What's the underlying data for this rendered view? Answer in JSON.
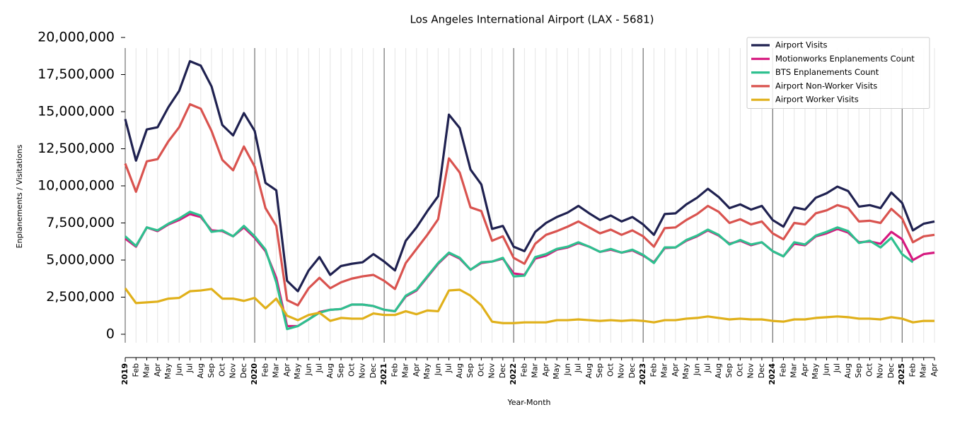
{
  "chart_data": {
    "type": "line",
    "title": "Los Angeles International Airport (LAX - 5681)",
    "x_label": "Year-Month",
    "y_label": "Enplanements / Visitations",
    "categories": [
      "2019",
      "Feb",
      "Mar",
      "Apr",
      "May",
      "Jun",
      "Jul",
      "Aug",
      "Sep",
      "Oct",
      "Nov",
      "Dec",
      "2020",
      "Feb",
      "Mar",
      "Apr",
      "May",
      "Jun",
      "Jul",
      "Aug",
      "Sep",
      "Oct",
      "Nov",
      "Dec",
      "2021",
      "Feb",
      "Mar",
      "Apr",
      "May",
      "Jun",
      "Jul",
      "Aug",
      "Sep",
      "Oct",
      "Nov",
      "Dec",
      "2022",
      "Feb",
      "Mar",
      "Apr",
      "May",
      "Jun",
      "Jul",
      "Aug",
      "Sep",
      "Oct",
      "Nov",
      "Dec",
      "2023",
      "Feb",
      "Mar",
      "Apr",
      "May",
      "Jun",
      "Jul",
      "Aug",
      "Sep",
      "Oct",
      "Nov",
      "Dec",
      "2024",
      "Feb",
      "Mar",
      "Apr",
      "May",
      "Jun",
      "Jul",
      "Aug",
      "Sep",
      "Oct",
      "Nov",
      "Dec",
      "2025",
      "Feb",
      "Mar",
      "Apr"
    ],
    "series": [
      {
        "name": "Airport Visits",
        "color": "#1f2150",
        "values": [
          14500000,
          11700000,
          13800000,
          13950000,
          15300000,
          16400000,
          18400000,
          18100000,
          16700000,
          14100000,
          13400000,
          14900000,
          13700000,
          10200000,
          9700000,
          3600000,
          2900000,
          4300000,
          5200000,
          4000000,
          4600000,
          4750000,
          4850000,
          5400000,
          4900000,
          4300000,
          6300000,
          7200000,
          8300000,
          9300000,
          14800000,
          13900000,
          11100000,
          10100000,
          7100000,
          7300000,
          5900000,
          5600000,
          6900000,
          7500000,
          7900000,
          8200000,
          8650000,
          8150000,
          7700000,
          8000000,
          7600000,
          7900000,
          7400000,
          6700000,
          8100000,
          8150000,
          8750000,
          9200000,
          9800000,
          9250000,
          8500000,
          8750000,
          8400000,
          8650000,
          7700000,
          7250000,
          8550000,
          8400000,
          9200000,
          9500000,
          9950000,
          9650000,
          8600000,
          8700000,
          8500000,
          9550000,
          8850000,
          7000000,
          7450000,
          7600000
        ]
      },
      {
        "name": "Motionworks Enplanements Count",
        "color": "#d6197f",
        "values": [
          6450000,
          5900000,
          7200000,
          6950000,
          7400000,
          7700000,
          8100000,
          7900000,
          7000000,
          6950000,
          6600000,
          7200000,
          6500000,
          5600000,
          3800000,
          550000,
          550000,
          1000000,
          1500000,
          1650000,
          1700000,
          2000000,
          2000000,
          1900000,
          1650000,
          1550000,
          2550000,
          2950000,
          3850000,
          4750000,
          5450000,
          5100000,
          4350000,
          4800000,
          4900000,
          5100000,
          4100000,
          4000000,
          5100000,
          5300000,
          5700000,
          5850000,
          6150000,
          5900000,
          5550000,
          5700000,
          5500000,
          5650000,
          5300000,
          4850000,
          5800000,
          5850000,
          6300000,
          6600000,
          7000000,
          6650000,
          6100000,
          6300000,
          6000000,
          6200000,
          5600000,
          5250000,
          6100000,
          6000000,
          6600000,
          6800000,
          7100000,
          6850000,
          6200000,
          6250000,
          6100000,
          6900000,
          6400000,
          5000000,
          5400000,
          5500000
        ]
      },
      {
        "name": "BTS Enplanements Count",
        "color": "#2ec08f",
        "values": [
          6600000,
          5950000,
          7200000,
          7000000,
          7450000,
          7800000,
          8250000,
          8000000,
          6900000,
          7000000,
          6600000,
          7300000,
          6600000,
          5700000,
          3500000,
          350000,
          550000,
          1000000,
          1450000,
          1650000,
          1700000,
          2000000,
          2000000,
          1900000,
          1650000,
          1550000,
          2600000,
          3000000,
          3900000,
          4800000,
          5500000,
          5150000,
          4350000,
          4850000,
          4900000,
          5150000,
          3900000,
          3950000,
          5200000,
          5400000,
          5750000,
          5900000,
          6200000,
          5900000,
          5550000,
          5750000,
          5500000,
          5700000,
          5350000,
          4800000,
          5850000,
          5850000,
          6350000,
          6650000,
          7050000,
          6700000,
          6050000,
          6350000,
          6050000,
          6200000,
          5600000,
          5250000,
          6200000,
          6050000,
          6650000,
          6900000,
          7200000,
          6950000,
          6150000,
          6300000,
          5850000,
          6500000,
          5400000,
          4850000,
          null,
          null
        ]
      },
      {
        "name": "Airport Non-Worker Visits",
        "color": "#d9534f",
        "values": [
          11500000,
          9600000,
          11650000,
          11800000,
          13000000,
          13950000,
          15500000,
          15200000,
          13700000,
          11750000,
          11050000,
          12650000,
          11300000,
          8500000,
          7300000,
          2300000,
          1950000,
          3100000,
          3800000,
          3100000,
          3500000,
          3750000,
          3900000,
          4000000,
          3600000,
          3050000,
          4800000,
          5750000,
          6700000,
          7750000,
          11850000,
          10900000,
          8550000,
          8300000,
          6300000,
          6600000,
          5150000,
          4750000,
          6100000,
          6700000,
          6950000,
          7250000,
          7600000,
          7200000,
          6800000,
          7050000,
          6700000,
          7000000,
          6600000,
          5900000,
          7150000,
          7200000,
          7700000,
          8100000,
          8650000,
          8250000,
          7500000,
          7750000,
          7400000,
          7600000,
          6800000,
          6400000,
          7500000,
          7400000,
          8150000,
          8350000,
          8700000,
          8500000,
          7600000,
          7650000,
          7500000,
          8450000,
          7800000,
          6200000,
          6600000,
          6700000
        ]
      },
      {
        "name": "Airport Worker Visits",
        "color": "#e0b01a",
        "values": [
          3100000,
          2100000,
          2150000,
          2200000,
          2400000,
          2450000,
          2900000,
          2950000,
          3050000,
          2400000,
          2400000,
          2250000,
          2450000,
          1750000,
          2400000,
          1250000,
          950000,
          1300000,
          1450000,
          900000,
          1100000,
          1050000,
          1050000,
          1400000,
          1300000,
          1300000,
          1550000,
          1350000,
          1600000,
          1550000,
          2950000,
          3000000,
          2600000,
          1950000,
          850000,
          750000,
          750000,
          800000,
          800000,
          800000,
          950000,
          950000,
          1000000,
          950000,
          900000,
          950000,
          900000,
          950000,
          900000,
          800000,
          950000,
          950000,
          1050000,
          1100000,
          1200000,
          1100000,
          1000000,
          1050000,
          1000000,
          1000000,
          900000,
          850000,
          1000000,
          1000000,
          1100000,
          1150000,
          1200000,
          1150000,
          1050000,
          1050000,
          1000000,
          1150000,
          1050000,
          800000,
          900000,
          900000
        ]
      }
    ],
    "ylim": [
      0,
      20000000
    ],
    "yticks": [
      0,
      {
        "value": 2500000,
        "label": "2,500,000"
      },
      {
        "value": 5000000,
        "label": "5,000,000"
      },
      {
        "value": 7500000,
        "label": "7,500,000"
      },
      {
        "value": 10000000,
        "label": "10,000,000"
      },
      {
        "value": 12500000,
        "label": "12,500,000"
      },
      {
        "value": 15000000,
        "label": "15,000,000"
      },
      {
        "value": 17500000,
        "label": "17,500,000"
      },
      {
        "value": 20000000,
        "label": "20,000,000"
      }
    ],
    "grid": true,
    "legend": "upper right"
  }
}
